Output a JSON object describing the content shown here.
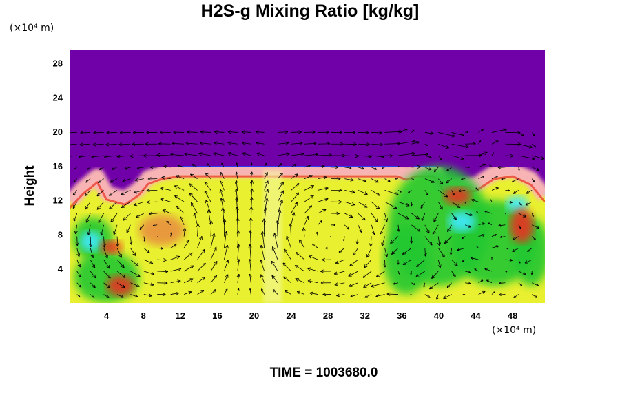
{
  "chart_data": {
    "type": "heatmap",
    "title": "H2S-g Mixing Ratio [kg/kg]",
    "xlabel": "",
    "ylabel": "Height",
    "x_unit": "(×10⁴ m)",
    "y_unit": "(×10⁴ m)",
    "xlim": [
      0,
      51.5
    ],
    "ylim": [
      0,
      29.5
    ],
    "xticks": [
      4,
      8,
      12,
      16,
      20,
      24,
      28,
      32,
      36,
      40,
      44,
      48
    ],
    "yticks": [
      4,
      8,
      12,
      16,
      20,
      24,
      28
    ],
    "overlay": "wind vectors",
    "colors": {
      "background": "#7000a8",
      "high": "#f8b4b4",
      "mid": "#e8f030",
      "low": "#20c830",
      "cyan": "#40e8ff",
      "red": "#e83020",
      "blue": "#2040ff"
    },
    "top_profile": [
      [
        0,
        11.8
      ],
      [
        1.5,
        13.5
      ],
      [
        3,
        14.8
      ],
      [
        4,
        12.8
      ],
      [
        6,
        12.2
      ],
      [
        7.5,
        13.3
      ],
      [
        8.5,
        14.6
      ],
      [
        10,
        15.2
      ],
      [
        12,
        15.5
      ],
      [
        16,
        15.5
      ],
      [
        20,
        15.5
      ],
      [
        24,
        15.5
      ],
      [
        28,
        15.5
      ],
      [
        32,
        15.5
      ],
      [
        35.5,
        15.5
      ],
      [
        36.5,
        15.1
      ],
      [
        37.5,
        15.5
      ],
      [
        39.5,
        15.5
      ],
      [
        40.5,
        13.8
      ],
      [
        42,
        13.6
      ],
      [
        44,
        13.8
      ],
      [
        46,
        15.2
      ],
      [
        48,
        15.5
      ],
      [
        50,
        14.5
      ],
      [
        51.5,
        12.5
      ]
    ]
  },
  "footer": {
    "time_text": "TIME = 1003680.0"
  }
}
